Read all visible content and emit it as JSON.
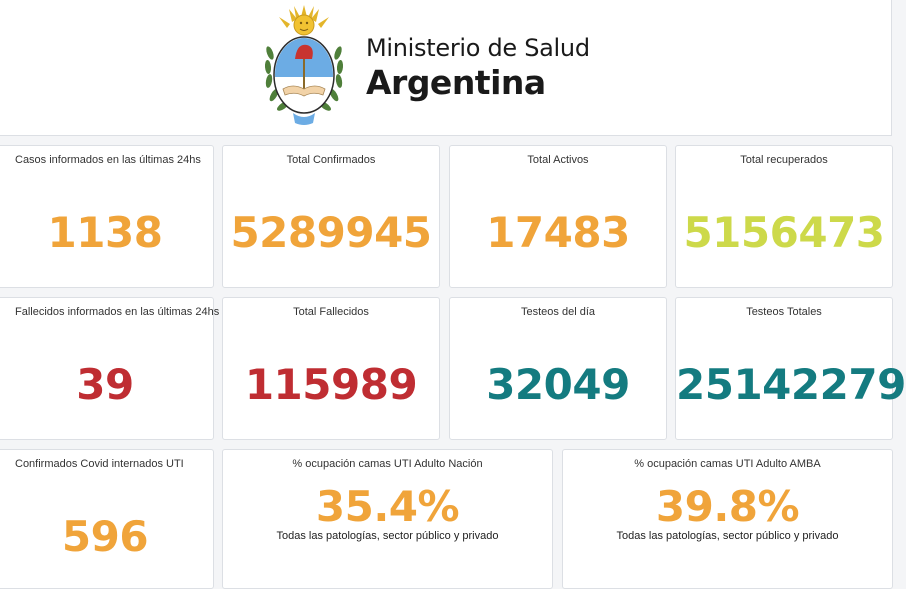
{
  "header": {
    "ministry": "Ministerio de Salud",
    "country": "Argentina",
    "emblem_icon": "coat-of-arms-argentina-icon"
  },
  "colors": {
    "orange": "#f0a43a",
    "lime": "#cdd94a",
    "red": "#bf2d32",
    "teal": "#147b80"
  },
  "cards": {
    "casos_ultimas": {
      "title": "Casos informados en las últimas 24hs",
      "value": "1138"
    },
    "total_confirmados": {
      "title": "Total Confirmados",
      "value": "5289945"
    },
    "total_activos": {
      "title": "Total Activos",
      "value": "17483"
    },
    "total_recuperados": {
      "title": "Total recuperados",
      "value": "5156473"
    },
    "fallecidos_ultimas": {
      "title": "Fallecidos informados en las últimas 24hs",
      "value": "39"
    },
    "total_fallecidos": {
      "title": "Total Fallecidos",
      "value": "115989"
    },
    "testeos_dia": {
      "title": "Testeos del día",
      "value": "32049"
    },
    "testeos_totales": {
      "title": "Testeos Totales",
      "value": "25142279"
    },
    "internados_uti": {
      "title": "Confirmados Covid internados UTI",
      "value": "596"
    },
    "ocupacion_nacion": {
      "title": "% ocupación camas UTI Adulto Nación",
      "value": "35.4%",
      "subtitle": "Todas las patologías, sector público y privado"
    },
    "ocupacion_amba": {
      "title": "% ocupación camas UTI Adulto AMBA",
      "value": "39.8%",
      "subtitle": "Todas las patologías, sector público y privado"
    }
  }
}
